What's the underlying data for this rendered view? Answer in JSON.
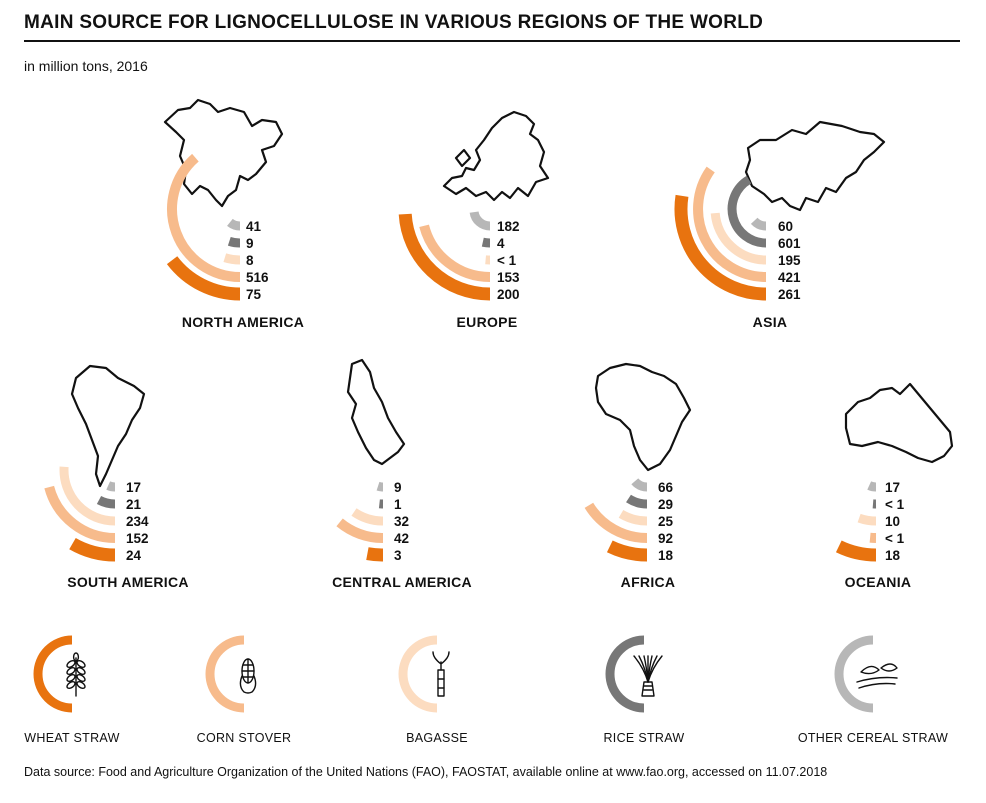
{
  "chart_data": {
    "type": "radial-bar",
    "title": "MAIN SOURCE FOR LIGNOCELLULOSE IN VARIOUS REGIONS OF THE WORLD",
    "subtitle": "in million tons, 2016",
    "categories": [
      "Other cereal straw",
      "Rice straw",
      "Bagasse",
      "Corn stover",
      "Wheat straw"
    ],
    "category_colors": [
      "#b7b7b7",
      "#777777",
      "#fcdcc0",
      "#f7bb8c",
      "#e8730f"
    ],
    "regions": [
      {
        "name": "NORTH AMERICA",
        "values": [
          41,
          9,
          8,
          516,
          75
        ],
        "labels": [
          "41",
          "9",
          "8",
          "516",
          "75"
        ]
      },
      {
        "name": "EUROPE",
        "values": [
          182,
          4,
          0.5,
          153,
          200
        ],
        "labels": [
          "182",
          "4",
          "< 1",
          "153",
          "200"
        ]
      },
      {
        "name": "ASIA",
        "values": [
          60,
          601,
          195,
          421,
          261
        ],
        "labels": [
          "60",
          "601",
          "195",
          "421",
          "261"
        ]
      },
      {
        "name": "SOUTH AMERICA",
        "values": [
          17,
          21,
          234,
          152,
          24
        ],
        "labels": [
          "17",
          "21",
          "234",
          "152",
          "24"
        ]
      },
      {
        "name": "CENTRAL AMERICA",
        "values": [
          9,
          1,
          32,
          42,
          3
        ],
        "labels": [
          "9",
          "1",
          "32",
          "42",
          "3"
        ]
      },
      {
        "name": "AFRICA",
        "values": [
          66,
          29,
          25,
          92,
          18
        ],
        "labels": [
          "66",
          "29",
          "25",
          "92",
          "18"
        ]
      },
      {
        "name": "OCEANIA",
        "values": [
          17,
          0.5,
          10,
          0.5,
          18
        ],
        "labels": [
          "17",
          "< 1",
          "10",
          "< 1",
          "18"
        ]
      }
    ],
    "legend": [
      {
        "label": "WHEAT STRAW",
        "color": "#e8730f",
        "icon": "wheat-icon"
      },
      {
        "label": "CORN STOVER",
        "color": "#f7bb8c",
        "icon": "corn-icon"
      },
      {
        "label": "BAGASSE",
        "color": "#fcdcc0",
        "icon": "sugarcane-icon"
      },
      {
        "label": "RICE STRAW",
        "color": "#777777",
        "icon": "rice-icon"
      },
      {
        "label": "OTHER CEREAL STRAW",
        "color": "#b7b7b7",
        "icon": "cereal-icon"
      }
    ]
  },
  "source": "Data source: Food and Agriculture Organization of the United Nations (FAO), FAOSTAT, available online at www.fao.org, accessed on 11.07.2018"
}
